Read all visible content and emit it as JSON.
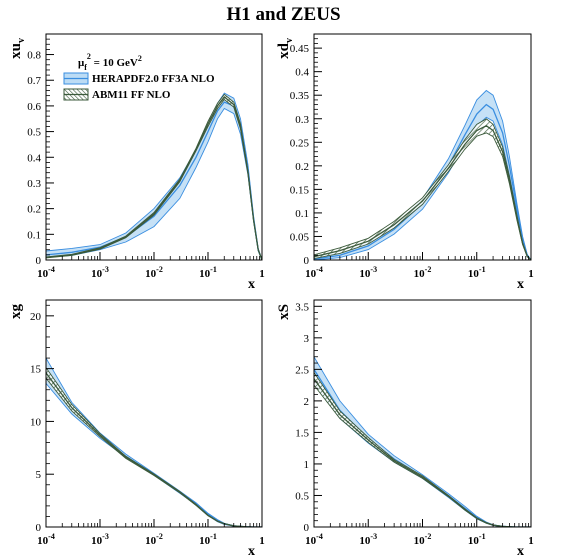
{
  "figure": {
    "title": "H1 and ZEUS",
    "legend": {
      "header": "μ",
      "header_sub": "f",
      "header_sup": "2",
      "header_rest": " = 10 GeV",
      "header_unit_sup": "2",
      "entries": [
        "HERAPDF2.0 FF3A NLO",
        "ABM11 FF NLO"
      ]
    }
  },
  "chart_data": [
    {
      "type": "area",
      "id": "xuv",
      "ylabel_main": "xu",
      "ylabel_sub": "v",
      "xlabel": "x",
      "xscale": "log",
      "xlim": [
        0.0001,
        1
      ],
      "ylim": [
        0,
        0.88
      ],
      "yticks": [
        0,
        0.1,
        0.2,
        0.3,
        0.4,
        0.5,
        0.6,
        0.7,
        0.8
      ],
      "ytick_labels": [
        "0",
        "0.1",
        "0.2",
        "0.3",
        "0.4",
        "0.5",
        "0.6",
        "0.7",
        "0.8"
      ],
      "legend": "top-left",
      "x": [
        0.0001,
        0.0003,
        0.001,
        0.003,
        0.01,
        0.03,
        0.06,
        0.1,
        0.15,
        0.2,
        0.3,
        0.4,
        0.55,
        0.7,
        0.85,
        1.0
      ],
      "series": [
        {
          "name": "HERAPDF2.0 FF3A NLO",
          "values": [
            0.02,
            0.03,
            0.05,
            0.09,
            0.17,
            0.29,
            0.4,
            0.5,
            0.58,
            0.615,
            0.6,
            0.52,
            0.35,
            0.16,
            0.04,
            0.0
          ],
          "lower": [
            0.01,
            0.018,
            0.04,
            0.07,
            0.13,
            0.24,
            0.36,
            0.46,
            0.55,
            0.59,
            0.57,
            0.49,
            0.33,
            0.15,
            0.035,
            0.0
          ],
          "upper": [
            0.035,
            0.045,
            0.06,
            0.105,
            0.2,
            0.32,
            0.43,
            0.53,
            0.61,
            0.65,
            0.63,
            0.55,
            0.37,
            0.17,
            0.045,
            0.0
          ]
        },
        {
          "name": "ABM11 FF NLO",
          "values": [
            0.01,
            0.02,
            0.045,
            0.09,
            0.18,
            0.31,
            0.43,
            0.53,
            0.6,
            0.635,
            0.605,
            0.52,
            0.34,
            0.155,
            0.04,
            0.0
          ],
          "lower": [
            0.008,
            0.018,
            0.042,
            0.087,
            0.175,
            0.305,
            0.425,
            0.52,
            0.59,
            0.625,
            0.595,
            0.51,
            0.335,
            0.152,
            0.038,
            0.0
          ],
          "upper": [
            0.012,
            0.022,
            0.048,
            0.093,
            0.185,
            0.315,
            0.435,
            0.54,
            0.61,
            0.645,
            0.615,
            0.53,
            0.345,
            0.158,
            0.042,
            0.0
          ]
        }
      ]
    },
    {
      "type": "area",
      "id": "xdv",
      "ylabel_main": "xd",
      "ylabel_sub": "v",
      "xlabel": "x",
      "xscale": "log",
      "xlim": [
        0.0001,
        1
      ],
      "ylim": [
        0,
        0.48
      ],
      "yticks": [
        0,
        0.05,
        0.1,
        0.15,
        0.2,
        0.25,
        0.3,
        0.35,
        0.4,
        0.45
      ],
      "ytick_labels": [
        "0",
        "0.05",
        "0.1",
        "0.15",
        "0.2",
        "0.25",
        "0.3",
        "0.35",
        "0.4",
        "0.45"
      ],
      "x": [
        0.0001,
        0.0003,
        0.001,
        0.003,
        0.01,
        0.03,
        0.06,
        0.1,
        0.15,
        0.2,
        0.3,
        0.4,
        0.55,
        0.7,
        0.85,
        1.0
      ],
      "series": [
        {
          "name": "HERAPDF2.0 FF3A NLO",
          "values": [
            0.002,
            0.01,
            0.03,
            0.065,
            0.12,
            0.2,
            0.265,
            0.31,
            0.33,
            0.32,
            0.27,
            0.2,
            0.11,
            0.045,
            0.01,
            0.0
          ],
          "lower": [
            0.0,
            0.005,
            0.022,
            0.055,
            0.108,
            0.185,
            0.245,
            0.285,
            0.303,
            0.295,
            0.245,
            0.18,
            0.1,
            0.04,
            0.008,
            0.0
          ],
          "upper": [
            0.006,
            0.015,
            0.036,
            0.072,
            0.13,
            0.215,
            0.285,
            0.34,
            0.36,
            0.35,
            0.295,
            0.22,
            0.12,
            0.05,
            0.012,
            0.0
          ]
        },
        {
          "name": "ABM11 FF NLO",
          "values": [
            0.007,
            0.02,
            0.04,
            0.075,
            0.125,
            0.195,
            0.245,
            0.275,
            0.285,
            0.275,
            0.23,
            0.17,
            0.09,
            0.035,
            0.008,
            0.0
          ],
          "lower": [
            0.003,
            0.014,
            0.034,
            0.068,
            0.118,
            0.188,
            0.235,
            0.263,
            0.27,
            0.262,
            0.22,
            0.162,
            0.085,
            0.033,
            0.007,
            0.0
          ],
          "upper": [
            0.011,
            0.026,
            0.046,
            0.082,
            0.132,
            0.202,
            0.255,
            0.288,
            0.3,
            0.288,
            0.24,
            0.178,
            0.095,
            0.037,
            0.009,
            0.0
          ]
        }
      ]
    },
    {
      "type": "area",
      "id": "xg",
      "ylabel_main": "xg",
      "ylabel_sub": "",
      "xlabel": "x",
      "xscale": "log",
      "xlim": [
        0.0001,
        1
      ],
      "ylim": [
        0,
        21.5
      ],
      "yticks": [
        0,
        5,
        10,
        15,
        20
      ],
      "ytick_labels": [
        "0",
        "5",
        "10",
        "15",
        "20"
      ],
      "x": [
        0.0001,
        0.0003,
        0.001,
        0.003,
        0.01,
        0.03,
        0.06,
        0.1,
        0.15,
        0.2,
        0.3,
        0.5,
        0.7,
        1.0
      ],
      "series": [
        {
          "name": "HERAPDF2.0 FF3A NLO",
          "values": [
            14.8,
            11.2,
            8.6,
            6.7,
            5.0,
            3.3,
            2.2,
            1.2,
            0.6,
            0.3,
            0.1,
            0.02,
            0.0,
            0.0
          ],
          "lower": [
            13.6,
            10.7,
            8.4,
            6.6,
            4.9,
            3.2,
            2.1,
            1.1,
            0.5,
            0.25,
            0.08,
            0.01,
            0.0,
            0.0
          ],
          "upper": [
            16.0,
            11.8,
            8.9,
            6.9,
            5.1,
            3.4,
            2.3,
            1.3,
            0.7,
            0.35,
            0.12,
            0.03,
            0.0,
            0.0
          ]
        },
        {
          "name": "ABM11 FF NLO",
          "values": [
            14.6,
            11.3,
            8.7,
            6.6,
            4.95,
            3.3,
            2.1,
            1.1,
            0.55,
            0.3,
            0.1,
            0.02,
            0.0,
            0.0
          ],
          "lower": [
            14.1,
            11.0,
            8.55,
            6.5,
            4.88,
            3.24,
            2.05,
            1.07,
            0.53,
            0.28,
            0.09,
            0.015,
            0.0,
            0.0
          ],
          "upper": [
            15.1,
            11.6,
            8.85,
            6.7,
            5.02,
            3.36,
            2.15,
            1.13,
            0.57,
            0.32,
            0.11,
            0.025,
            0.0,
            0.0
          ]
        }
      ]
    },
    {
      "type": "area",
      "id": "xS",
      "ylabel_main": "xS",
      "ylabel_sub": "",
      "xlabel": "x",
      "xscale": "log",
      "xlim": [
        0.0001,
        1
      ],
      "ylim": [
        0,
        3.6
      ],
      "yticks": [
        0,
        0.5,
        1,
        1.5,
        2,
        2.5,
        3,
        3.5
      ],
      "ytick_labels": [
        "0",
        "0.5",
        "1",
        "1.5",
        "2",
        "2.5",
        "3",
        "3.5"
      ],
      "x": [
        0.0001,
        0.0003,
        0.001,
        0.003,
        0.01,
        0.03,
        0.06,
        0.1,
        0.15,
        0.2,
        0.3,
        0.5,
        0.7,
        1.0
      ],
      "series": [
        {
          "name": "HERAPDF2.0 FF3A NLO",
          "values": [
            2.5,
            1.85,
            1.4,
            1.08,
            0.8,
            0.5,
            0.3,
            0.15,
            0.07,
            0.03,
            0.01,
            0.0,
            0.0,
            0.0
          ],
          "lower": [
            2.3,
            1.72,
            1.33,
            1.03,
            0.77,
            0.47,
            0.27,
            0.13,
            0.06,
            0.025,
            0.008,
            0.0,
            0.0,
            0.0
          ],
          "upper": [
            2.7,
            2.0,
            1.47,
            1.13,
            0.83,
            0.53,
            0.33,
            0.17,
            0.08,
            0.035,
            0.012,
            0.0,
            0.0,
            0.0
          ]
        },
        {
          "name": "ABM11 FF NLO",
          "values": [
            2.35,
            1.78,
            1.38,
            1.05,
            0.79,
            0.49,
            0.28,
            0.14,
            0.065,
            0.03,
            0.01,
            0.0,
            0.0,
            0.0
          ],
          "lower": [
            2.25,
            1.72,
            1.34,
            1.03,
            0.77,
            0.48,
            0.27,
            0.135,
            0.06,
            0.027,
            0.009,
            0.0,
            0.0,
            0.0
          ],
          "upper": [
            2.45,
            1.84,
            1.42,
            1.07,
            0.81,
            0.5,
            0.29,
            0.145,
            0.07,
            0.033,
            0.011,
            0.0,
            0.0,
            0.0
          ]
        }
      ]
    }
  ]
}
